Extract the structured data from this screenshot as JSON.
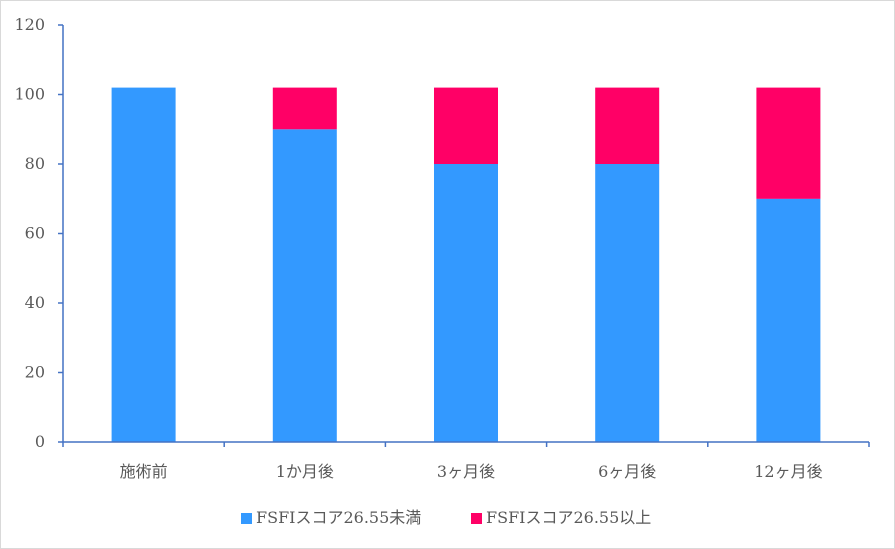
{
  "chart_data": {
    "type": "bar",
    "stacked": true,
    "categories": [
      "施術前",
      "1か月後",
      "3ヶ月後",
      "6ヶ月後",
      "12ヶ月後"
    ],
    "series": [
      {
        "name": "FSFIスコア26.55未満",
        "values": [
          102,
          90,
          80,
          80,
          70
        ],
        "color": "#3399ff"
      },
      {
        "name": "FSFIスコア26.55以上",
        "values": [
          0,
          12,
          22,
          22,
          32
        ],
        "color": "#ff0066"
      }
    ],
    "ylim": [
      0,
      120
    ],
    "yticks": [
      0,
      20,
      40,
      60,
      80,
      100,
      120
    ],
    "title": "",
    "xlabel": "",
    "ylabel": "",
    "legend_position": "bottom",
    "axis_color": "#4472c4"
  }
}
